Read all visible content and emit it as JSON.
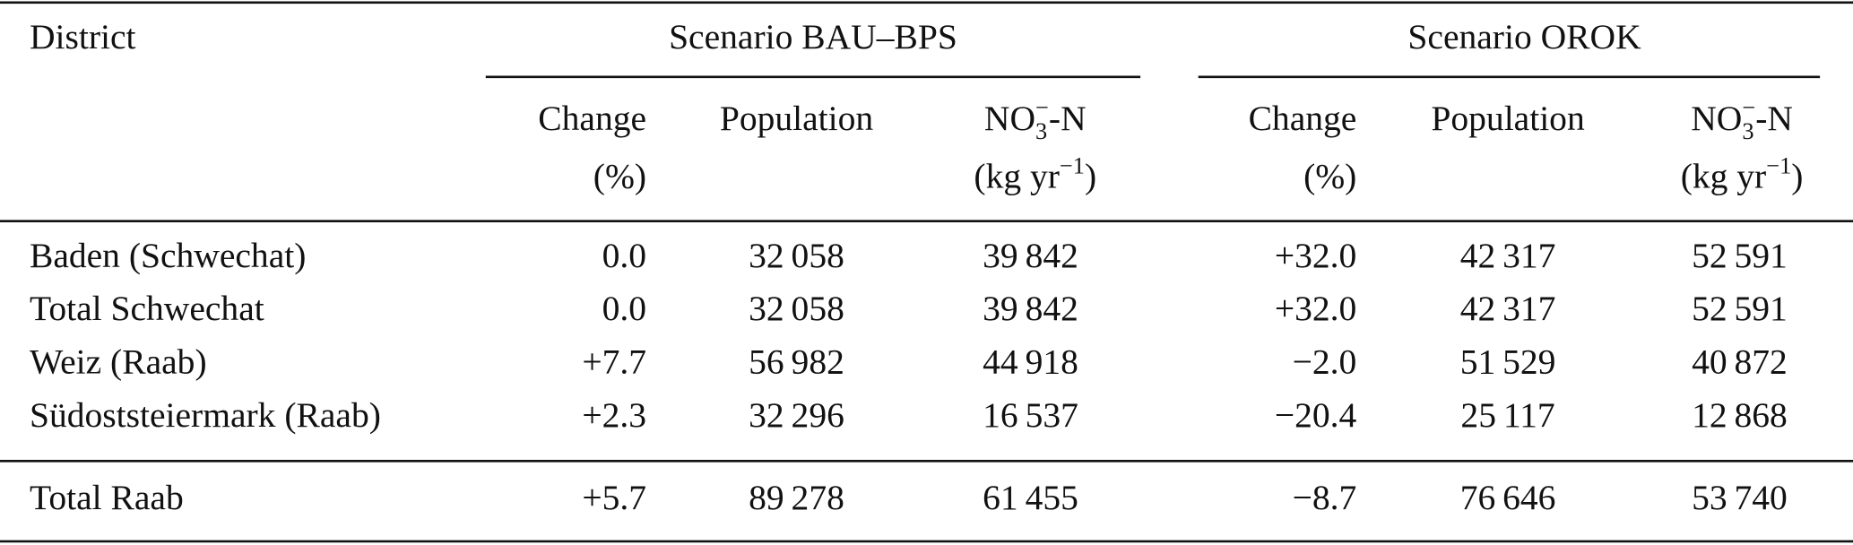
{
  "table": {
    "header": {
      "district": "District",
      "groups": [
        "Scenario BAU–BPS",
        "Scenario OROK"
      ]
    },
    "columns": [
      [
        {
          "line1": "Change",
          "line2": "(%)"
        },
        {
          "line1": "Population"
        },
        {
          "line1": {
            "base": "NO",
            "sub": "3",
            "sup": "−",
            "rest": "-N"
          },
          "line2": {
            "text": "(kg yr",
            "sup": "−1",
            "rest": ")"
          }
        }
      ],
      [
        {
          "line1": "Change",
          "line2": "(%)"
        },
        {
          "line1": "Population"
        },
        {
          "line1": {
            "base": "NO",
            "sub": "3",
            "sup": "−",
            "rest": "-N"
          },
          "line2": {
            "text": "(kg yr",
            "sup": "−1",
            "rest": ")"
          }
        }
      ]
    ],
    "rows": [
      [
        "Baden (Schwechat)",
        "0.0",
        "32 058",
        "39 842",
        "+32.0",
        "42 317",
        "52 591"
      ],
      [
        "Total Schwechat",
        "0.0",
        "32 058",
        "39 842",
        "+32.0",
        "42 317",
        "52 591"
      ],
      [
        "Weiz (Raab)",
        "+7.7",
        "56 982",
        "44 918",
        "−2.0",
        "51 529",
        "40 872"
      ],
      [
        "Südoststeiermark (Raab)",
        "+2.3",
        "32 296",
        "16 537",
        "−20.4",
        "25 117",
        "12 868"
      ]
    ],
    "total_row": [
      "Total Raab",
      "+5.7",
      "89 278",
      "61 455",
      "−8.7",
      "76 646",
      "53 740"
    ]
  }
}
